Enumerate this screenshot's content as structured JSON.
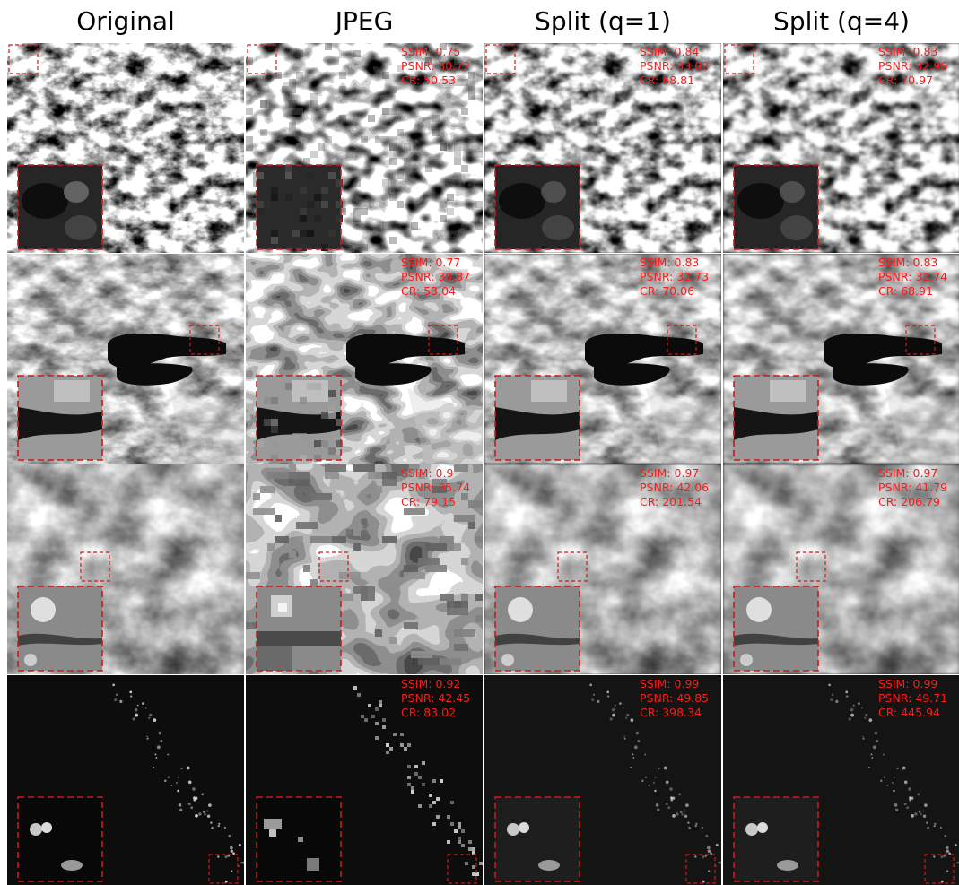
{
  "columns": [
    "Original",
    "JPEG",
    "Split (q=1)",
    "Split (q=4)"
  ],
  "metric_labels": {
    "ssim": "SSIM:",
    "psnr": "PSNR:",
    "cr": "CR:"
  },
  "rows": [
    {
      "scene": "mountain-terrain",
      "metrics": [
        null,
        {
          "ssim": "0.75",
          "psnr": "30.72",
          "cr": "50.53"
        },
        {
          "ssim": "0.84",
          "psnr": "33.02",
          "cr": "68.81"
        },
        {
          "ssim": "0.83",
          "psnr": "32.96",
          "cr": "70.97"
        }
      ]
    },
    {
      "scene": "lake-landscape",
      "metrics": [
        null,
        {
          "ssim": "0.77",
          "psnr": "30.87",
          "cr": "53.04"
        },
        {
          "ssim": "0.83",
          "psnr": "32.73",
          "cr": "70.06"
        },
        {
          "ssim": "0.83",
          "psnr": "32.74",
          "cr": "68.91"
        }
      ]
    },
    {
      "scene": "cloud-cover",
      "metrics": [
        null,
        {
          "ssim": "0.9",
          "psnr": "35.74",
          "cr": "79.15"
        },
        {
          "ssim": "0.97",
          "psnr": "42.06",
          "cr": "201.54"
        },
        {
          "ssim": "0.97",
          "psnr": "41.79",
          "cr": "206.79"
        }
      ]
    },
    {
      "scene": "dark-night-lights",
      "metrics": [
        null,
        {
          "ssim": "0.92",
          "psnr": "42.45",
          "cr": "83.02"
        },
        {
          "ssim": "0.99",
          "psnr": "49.85",
          "cr": "398.34"
        },
        {
          "ssim": "0.99",
          "psnr": "49.71",
          "cr": "445.94"
        }
      ]
    }
  ],
  "colors": {
    "metric_text": "#ff1a1a",
    "zoom_box": "#cc1a1a"
  }
}
